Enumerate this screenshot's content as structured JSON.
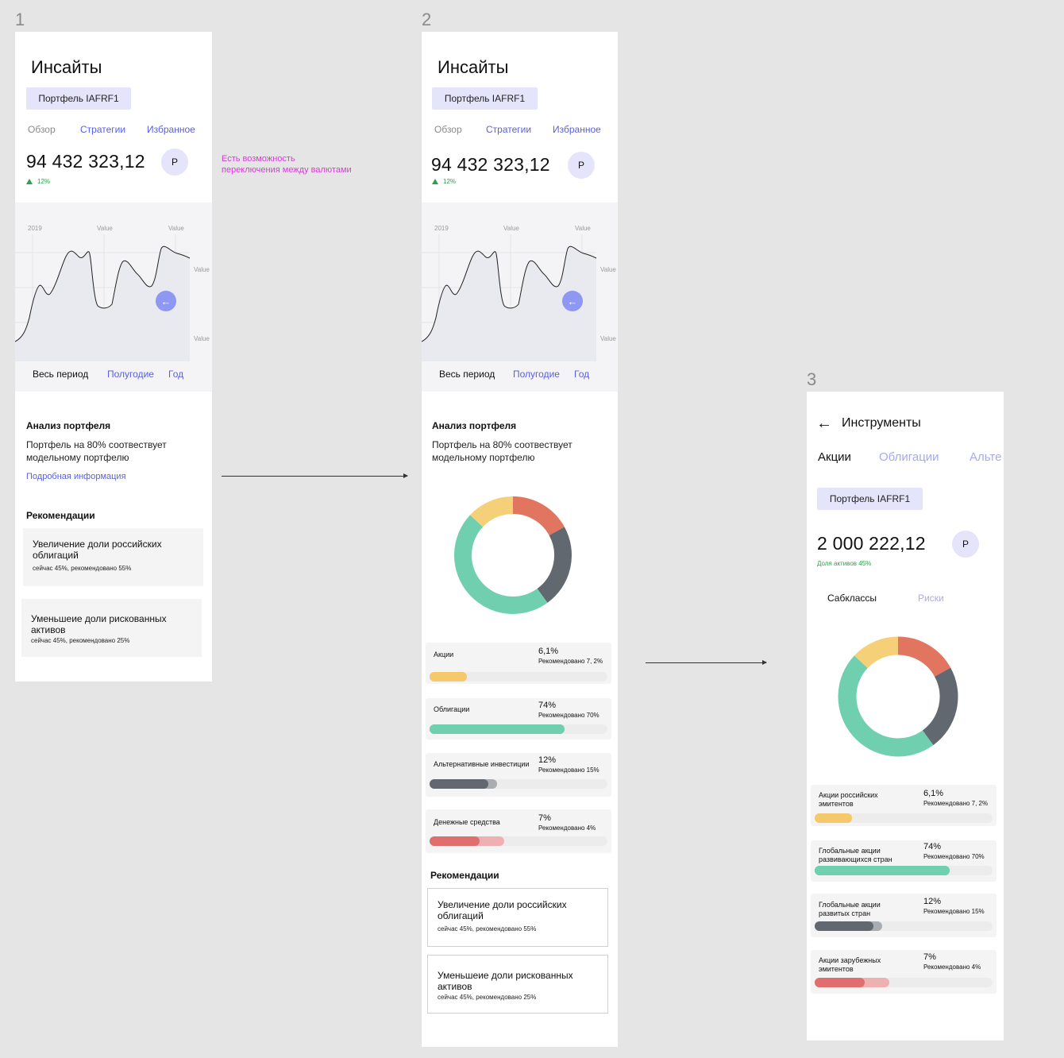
{
  "frames": {
    "f1": "1",
    "f2": "2",
    "f3": "3"
  },
  "insights": {
    "title": "Инсайты",
    "portfolio_chip": "Портфель IAFRF1",
    "tabs": [
      "Обзор",
      "Стратегии",
      "Избранное"
    ],
    "balance": "94 432 323,12",
    "currency": "Р",
    "growth": "12%",
    "chart": {
      "top_labels": [
        "2019",
        "Value",
        "Value"
      ],
      "right_labels": [
        "Value",
        "Value"
      ],
      "periods": [
        "Весь период",
        "Полугодие",
        "Год"
      ],
      "drag_icon": "←"
    },
    "analysis_title": "Анализ портфеля",
    "analysis_text_1": "Портфель на 80% соотвествует",
    "analysis_text_2": "модельному портфелю",
    "details_link": "Подробная информация",
    "recs_title": "Рекомендации",
    "recs": [
      {
        "title_1": "Увеличение доли российских",
        "title_2": "облигаций",
        "sub": "сейчас 45%, рекомендовано 55%"
      },
      {
        "title_1": "Уменьшеие доли рискованных",
        "title_2": "активов",
        "sub": "сейчас 45%, рекомендовано 25%"
      }
    ],
    "allocations": [
      {
        "name": "Акции",
        "pct": "6,1%",
        "rec": "Рекомендовано 7, 2%",
        "fill": 0.21,
        "rec_fill": 0.21,
        "color": "#f5c96b",
        "light": "#f5c96b"
      },
      {
        "name": "Облигации",
        "pct": "74%",
        "rec": "Рекомендовано 70%",
        "fill": 0.76,
        "rec_fill": 0.76,
        "color": "#6fcfaf",
        "light": "#6fcfaf"
      },
      {
        "name": "Альтернативные инвестиции",
        "pct": "12%",
        "rec": "Рекомендовано 15%",
        "fill": 0.33,
        "rec_fill": 0.38,
        "color": "#626870",
        "light": "#a9acb1"
      },
      {
        "name": "Денежные средства",
        "pct": "7%",
        "rec": "Рекомендовано 4%",
        "fill": 0.28,
        "rec_fill": 0.42,
        "color": "#e06e6e",
        "light": "#eeb0b0"
      }
    ]
  },
  "annotation": {
    "line_1": "Есть возможность",
    "line_2": "переключения между валютами"
  },
  "instruments": {
    "back_icon": "←",
    "title": "Инструменты",
    "tabs": [
      "Акции",
      "Облигации",
      "Альте"
    ],
    "portfolio_chip": "Портфель IAFRF1",
    "balance": "2 000 222,12",
    "currency": "Р",
    "share_label": "Доля активов 45%",
    "subtabs": [
      "Сабклассы",
      "Риски"
    ],
    "allocations": [
      {
        "name_1": "Акции российских",
        "name_2": "эмитентов",
        "pct": "6,1%",
        "rec": "Рекомендовано 7, 2%",
        "fill": 0.21,
        "rec_fill": 0.21,
        "color": "#f5c96b",
        "light": "#f5c96b"
      },
      {
        "name_1": "Глобальные акции",
        "name_2": "развивающихся стран",
        "pct": "74%",
        "rec": "Рекомендовано 70%",
        "fill": 0.76,
        "rec_fill": 0.76,
        "color": "#6fcfaf",
        "light": "#6fcfaf"
      },
      {
        "name_1": "Глобальные акции",
        "name_2": "развитых стран",
        "pct": "12%",
        "rec": "Рекомендовано 15%",
        "fill": 0.33,
        "rec_fill": 0.38,
        "color": "#626870",
        "light": "#a9acb1"
      },
      {
        "name_1": "Акции зарубежных",
        "name_2": " эмитентов",
        "pct": "7%",
        "rec": "Рекомендовано 4%",
        "fill": 0.28,
        "rec_fill": 0.42,
        "color": "#e06e6e",
        "light": "#eeb0b0"
      }
    ]
  },
  "donut": {
    "segments": [
      {
        "color": "#e2755f",
        "value": 17
      },
      {
        "color": "#626870",
        "value": 23
      },
      {
        "color": "#6fcfaf",
        "value": 47
      },
      {
        "color": "#f5d078",
        "value": 13
      }
    ]
  },
  "colors": {
    "accent": "#5a5fe0",
    "chip": "#e4e5fb",
    "growth": "#2ca24a",
    "annotation": "#d53ed6"
  }
}
